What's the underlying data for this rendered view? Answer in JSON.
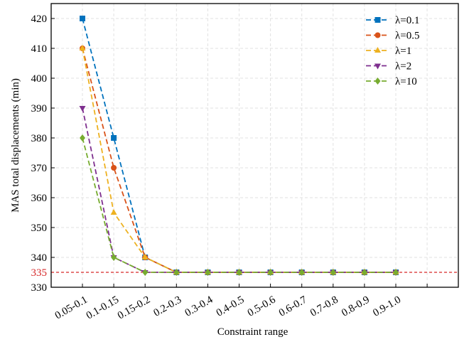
{
  "chart_data": {
    "type": "line",
    "title": "",
    "xlabel": "Constraint range",
    "ylabel": "MAS total displacements (min)",
    "categories": [
      "0.05-0.1",
      "0.1-0.15",
      "0.15-0.2",
      "0.2-0.3",
      "0.3-0.4",
      "0.4-0.5",
      "0.5-0.6",
      "0.6-0.7",
      "0.7-0.8",
      "0.8-0.9",
      "0.9-1.0"
    ],
    "ylim": [
      330,
      425
    ],
    "yticks": [
      330,
      340,
      350,
      360,
      370,
      380,
      390,
      400,
      410,
      420
    ],
    "grid": true,
    "legend_position": "top-right",
    "series": [
      {
        "name": "λ=0.1",
        "color": "#0072BD",
        "marker": "square",
        "values": [
          420,
          380,
          340,
          335,
          335,
          335,
          335,
          335,
          335,
          335,
          335
        ]
      },
      {
        "name": "λ=0.5",
        "color": "#D95319",
        "marker": "circle",
        "values": [
          410,
          370,
          340,
          335,
          335,
          335,
          335,
          335,
          335,
          335,
          335
        ]
      },
      {
        "name": "λ=1",
        "color": "#EDB120",
        "marker": "triangle-up",
        "values": [
          410,
          355,
          340,
          335,
          335,
          335,
          335,
          335,
          335,
          335,
          335
        ]
      },
      {
        "name": "λ=2",
        "color": "#7E2F8E",
        "marker": "triangle-down",
        "values": [
          390,
          340,
          335,
          335,
          335,
          335,
          335,
          335,
          335,
          335,
          335
        ]
      },
      {
        "name": "λ=10",
        "color": "#77AC30",
        "marker": "diamond",
        "values": [
          380,
          340,
          335,
          335,
          335,
          335,
          335,
          335,
          335,
          335,
          335
        ]
      }
    ],
    "reference_line": {
      "value": 335,
      "label": "335",
      "color": "#D62728"
    }
  }
}
